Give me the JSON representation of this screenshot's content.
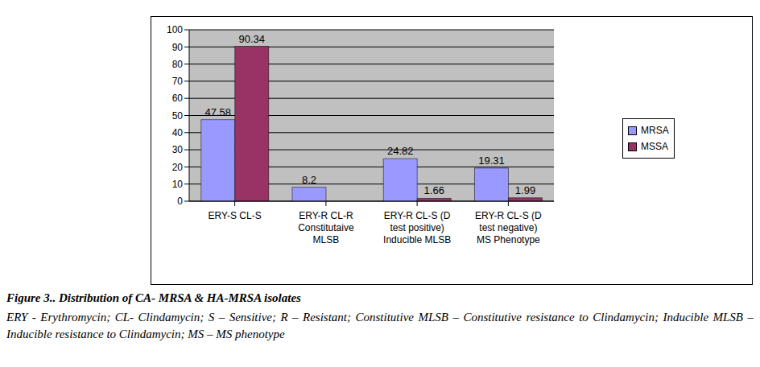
{
  "chart_data": {
    "type": "bar",
    "title": "Figure 3.. Distribution of CA- MRSA & HA-MRSA isolates",
    "subtitle": "ERY - Erythromycin; CL- Clindamycin; S – Sensitive; R – Resistant; Constitutive MLSB – Constitutive resistance to Clindamycin; Inducible MLSB – Inducible resistance to Clindamycin; MS – MS phenotype",
    "categories": [
      "ERY-S CL-S",
      "ERY-R CL-R\nConstitutaive\nMLSB",
      "ERY-R CL-S (D\ntest positive)\nInducible MLSB",
      "ERY-R CL-S (D\ntest negative)\nMS Phenotype"
    ],
    "series": [
      {
        "name": "MRSA",
        "color": "#9999ff",
        "values": [
          47.58,
          8.2,
          24.82,
          19.31
        ]
      },
      {
        "name": "MSSA",
        "color": "#993366",
        "values": [
          90.34,
          null,
          1.66,
          1.99
        ]
      }
    ],
    "ylim": [
      0,
      100
    ],
    "yticks": [
      0,
      10,
      20,
      30,
      40,
      50,
      60,
      70,
      80,
      90,
      100
    ],
    "grid": true,
    "legend": "right",
    "data_labels": true
  }
}
